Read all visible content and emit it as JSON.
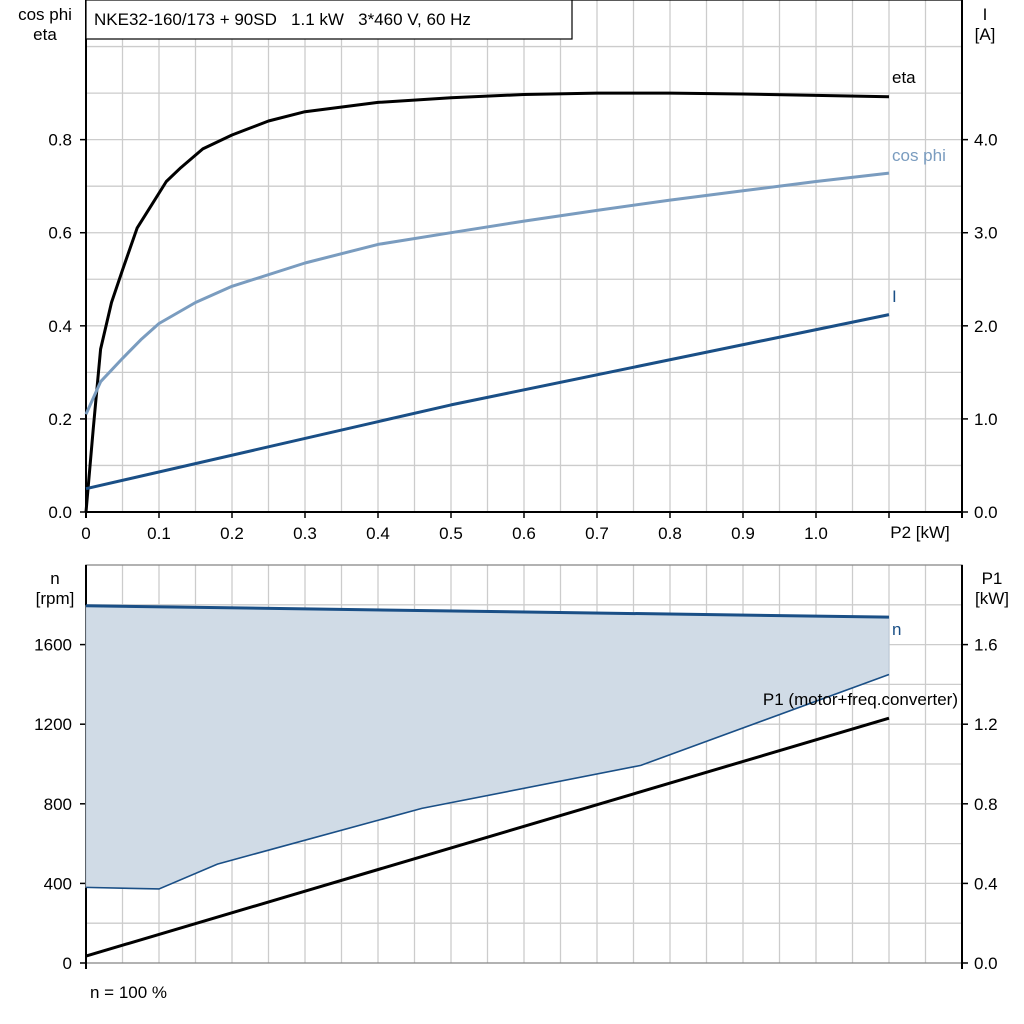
{
  "chart_data": [
    {
      "type": "line",
      "title": "NKE32-160/173 + 90SD   1.1 kW   3*460 V, 60 Hz",
      "xlabel": "P2 [kW]",
      "ylabel_left": [
        "cos phi",
        "eta"
      ],
      "ylabel_right": [
        "I",
        "[A]"
      ],
      "xlim": [
        0,
        1.1
      ],
      "ylim_left": [
        0,
        1.1
      ],
      "ylim_right": [
        0,
        5.5
      ],
      "x_ticks": [
        "0",
        "0.1",
        "0.2",
        "0.3",
        "0.4",
        "0.5",
        "0.6",
        "0.7",
        "0.8",
        "0.9",
        "1.0"
      ],
      "y_ticks_left": [
        "0.0",
        "0.2",
        "0.4",
        "0.6",
        "0.8"
      ],
      "y_ticks_right": [
        "0.0",
        "1.0",
        "2.0",
        "3.0",
        "4.0"
      ],
      "grid": true,
      "series": [
        {
          "name": "eta",
          "axis": "left",
          "color": "#000000",
          "x": [
            0,
            0.01,
            0.02,
            0.035,
            0.05,
            0.07,
            0.09,
            0.11,
            0.13,
            0.16,
            0.2,
            0.25,
            0.3,
            0.4,
            0.5,
            0.6,
            0.7,
            0.8,
            0.9,
            1.0,
            1.1
          ],
          "y": [
            0,
            0.18,
            0.35,
            0.45,
            0.52,
            0.61,
            0.66,
            0.71,
            0.74,
            0.78,
            0.81,
            0.84,
            0.86,
            0.88,
            0.89,
            0.897,
            0.9,
            0.9,
            0.898,
            0.895,
            0.892
          ]
        },
        {
          "name": "cos phi",
          "axis": "left",
          "color": "#7a9cbf",
          "x": [
            0,
            0.02,
            0.05,
            0.075,
            0.1,
            0.15,
            0.2,
            0.3,
            0.4,
            0.5,
            0.6,
            0.7,
            0.8,
            0.9,
            1.0,
            1.1
          ],
          "y": [
            0.21,
            0.28,
            0.33,
            0.37,
            0.405,
            0.45,
            0.485,
            0.535,
            0.575,
            0.6,
            0.625,
            0.648,
            0.67,
            0.69,
            0.71,
            0.728
          ]
        },
        {
          "name": "I",
          "axis": "right",
          "color": "#1a4f86",
          "x": [
            0,
            0.5,
            1.1
          ],
          "y": [
            0.25,
            1.15,
            2.12
          ]
        }
      ]
    },
    {
      "type": "line",
      "ylabel_left": [
        "n",
        "[rpm]"
      ],
      "ylabel_right": [
        "P1",
        "[kW]"
      ],
      "xlim": [
        0,
        1.1
      ],
      "ylim_left": [
        0,
        2000
      ],
      "ylim_right": [
        0,
        2.0
      ],
      "y_ticks_left": [
        "0",
        "400",
        "800",
        "1200",
        "1600"
      ],
      "y_ticks_right": [
        "0.0",
        "0.4",
        "0.8",
        "1.2",
        "1.6"
      ],
      "grid": true,
      "footnote": "n = 100 %",
      "series": [
        {
          "name": "n",
          "axis": "left",
          "color": "#1a4f86",
          "x": [
            0,
            1.1
          ],
          "y": [
            1795,
            1738
          ]
        },
        {
          "name": "",
          "axis": "left",
          "color": "#1a4f86",
          "role": "lower-limit",
          "x": [
            0,
            0.1,
            0.18,
            0.46,
            0.76,
            1.1
          ],
          "y": [
            380,
            372,
            497,
            777,
            993,
            1450
          ]
        },
        {
          "name": "P1 (motor+freq.converter)",
          "axis": "right",
          "color": "#000000",
          "x": [
            0,
            1.1
          ],
          "y": [
            0.035,
            1.23
          ]
        }
      ],
      "fill_color": "#d0dbe6"
    }
  ]
}
